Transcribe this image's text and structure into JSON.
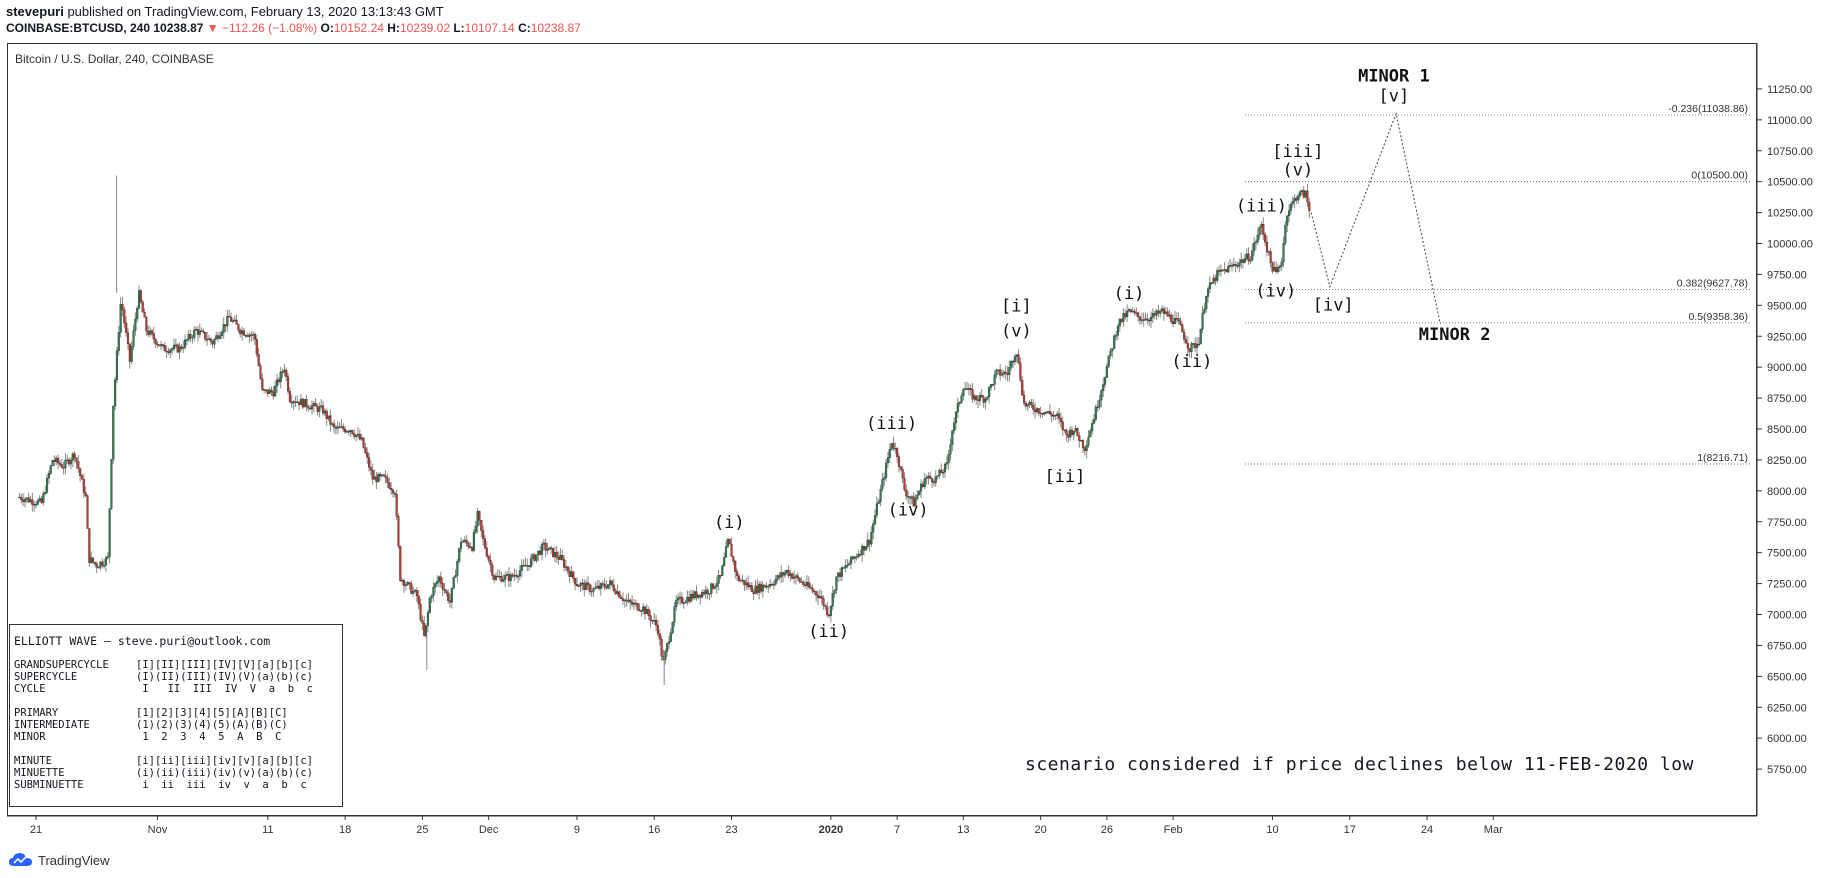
{
  "header": {
    "author": "stevepuri",
    "published": "published on TradingView.com, February 13, 2020 13:13:43 GMT",
    "symbol": "COINBASE:BTCUSD, 240",
    "last": "10238.87",
    "change": "▼ −112.26 (−1.08%)",
    "o_label": "O:",
    "o": "10152.24",
    "h_label": "H:",
    "h": "10239.02",
    "l_label": "L:",
    "l": "10107.14",
    "c_label": "C:",
    "c": "10238.87"
  },
  "instrument": "Bitcoin / U.S. Dollar, 240, COINBASE",
  "footer_brand": "TradingView",
  "note": "scenario considered if price declines below 11-FEB-2020 low",
  "legend": {
    "title": "ELLIOTT WAVE — steve.puri@outlook.com",
    "rows": [
      {
        "name": "GRANDSUPERCYCLE",
        "labels": "[I][II][III][IV][V][a][b][c]"
      },
      {
        "name": "SUPERCYCLE",
        "labels": "(I)(II)(III)(IV)(V)(a)(b)(c)"
      },
      {
        "name": "CYCLE",
        "labels": " I   II  III  IV  V  a  b  c"
      },
      {
        "name": "",
        "labels": ""
      },
      {
        "name": "PRIMARY",
        "labels": "[1][2][3][4][5][A][B][C]"
      },
      {
        "name": "INTERMEDIATE",
        "labels": "(1)(2)(3)(4)(5)(A)(B)(C)"
      },
      {
        "name": "MINOR",
        "labels": " 1  2  3  4  5  A  B  C"
      },
      {
        "name": "",
        "labels": ""
      },
      {
        "name": "MINUTE",
        "labels": "[i][ii][iii][iv][v][a][b][c]"
      },
      {
        "name": "MINUETTE",
        "labels": "(i)(ii)(iii)(iv)(v)(a)(b)(c)"
      },
      {
        "name": "SUBMINUETTE",
        "labels": " i  ii  iii  iv  v  a  b  c"
      }
    ]
  },
  "chart_data": {
    "type": "candlestick",
    "title": "Bitcoin / U.S. Dollar, 240, COINBASE",
    "ylim": [
      5500,
      11500
    ],
    "y_ticks": [
      "5750.00",
      "6000.00",
      "6250.00",
      "6500.00",
      "6750.00",
      "7000.00",
      "7250.00",
      "7500.00",
      "7750.00",
      "8000.00",
      "8250.00",
      "8500.00",
      "8750.00",
      "9000.00",
      "9250.00",
      "9500.00",
      "9750.00",
      "10000.00",
      "10250.00",
      "10500.00",
      "10750.00",
      "11000.00",
      "11250.00"
    ],
    "x_ticks": [
      {
        "label": "21",
        "day": 0
      },
      {
        "label": "Nov",
        "day": 11
      },
      {
        "label": "11",
        "day": 21
      },
      {
        "label": "18",
        "day": 28
      },
      {
        "label": "25",
        "day": 35
      },
      {
        "label": "Dec",
        "day": 41
      },
      {
        "label": "9",
        "day": 49
      },
      {
        "label": "16",
        "day": 56
      },
      {
        "label": "23",
        "day": 63
      },
      {
        "label": "2020",
        "day": 72
      },
      {
        "label": "7",
        "day": 78
      },
      {
        "label": "13",
        "day": 84
      },
      {
        "label": "20",
        "day": 91
      },
      {
        "label": "26",
        "day": 97
      },
      {
        "label": "Feb",
        "day": 103
      },
      {
        "label": "10",
        "day": 112
      },
      {
        "label": "17",
        "day": 119
      },
      {
        "label": "24",
        "day": 126
      },
      {
        "label": "Mar",
        "day": 132
      }
    ],
    "price_path": [
      [
        -1.5,
        7950
      ],
      [
        0.5,
        7900
      ],
      [
        1.5,
        8250
      ],
      [
        2.5,
        8200
      ],
      [
        3.5,
        8300
      ],
      [
        4.5,
        7950
      ],
      [
        4.8,
        7450
      ],
      [
        5.5,
        7400
      ],
      [
        6.5,
        7450
      ],
      [
        7.0,
        8700
      ],
      [
        7.7,
        9550
      ],
      [
        8.5,
        9050
      ],
      [
        9.3,
        9600
      ],
      [
        10.0,
        9300
      ],
      [
        11.5,
        9150
      ],
      [
        13.0,
        9150
      ],
      [
        14.5,
        9300
      ],
      [
        16.0,
        9200
      ],
      [
        17.5,
        9400
      ],
      [
        18.5,
        9300
      ],
      [
        19.8,
        9250
      ],
      [
        20.5,
        8800
      ],
      [
        21.5,
        8800
      ],
      [
        22.5,
        9000
      ],
      [
        23.0,
        8750
      ],
      [
        24.5,
        8700
      ],
      [
        26.0,
        8650
      ],
      [
        27.0,
        8500
      ],
      [
        28.5,
        8500
      ],
      [
        29.5,
        8400
      ],
      [
        30.5,
        8100
      ],
      [
        31.5,
        8100
      ],
      [
        32.5,
        8000
      ],
      [
        33.0,
        7300
      ],
      [
        34.0,
        7200
      ],
      [
        34.5,
        7150
      ],
      [
        35.2,
        6800
      ],
      [
        35.7,
        7150
      ],
      [
        36.5,
        7300
      ],
      [
        37.5,
        7100
      ],
      [
        38.5,
        7600
      ],
      [
        39.5,
        7550
      ],
      [
        40.0,
        7800
      ],
      [
        40.5,
        7600
      ],
      [
        41.5,
        7300
      ],
      [
        43.0,
        7300
      ],
      [
        44.5,
        7400
      ],
      [
        46.0,
        7550
      ],
      [
        47.5,
        7450
      ],
      [
        49.0,
        7250
      ],
      [
        50.5,
        7200
      ],
      [
        52.0,
        7250
      ],
      [
        53.5,
        7100
      ],
      [
        55.0,
        7050
      ],
      [
        56.3,
        6900
      ],
      [
        56.8,
        6600
      ],
      [
        57.3,
        6800
      ],
      [
        58.0,
        7100
      ],
      [
        59.5,
        7150
      ],
      [
        61.0,
        7200
      ],
      [
        62.0,
        7300
      ],
      [
        62.7,
        7600
      ],
      [
        63.5,
        7300
      ],
      [
        65.0,
        7200
      ],
      [
        66.5,
        7250
      ],
      [
        68.0,
        7350
      ],
      [
        69.5,
        7250
      ],
      [
        71.0,
        7150
      ],
      [
        71.8,
        7000
      ],
      [
        72.5,
        7300
      ],
      [
        73.5,
        7400
      ],
      [
        74.5,
        7500
      ],
      [
        75.5,
        7600
      ],
      [
        76.0,
        7800
      ],
      [
        77.5,
        8400
      ],
      [
        78.0,
        8300
      ],
      [
        78.7,
        8000
      ],
      [
        79.5,
        7900
      ],
      [
        80.5,
        8100
      ],
      [
        81.5,
        8100
      ],
      [
        82.5,
        8200
      ],
      [
        83.0,
        8500
      ],
      [
        84.0,
        8850
      ],
      [
        85.0,
        8750
      ],
      [
        86.0,
        8750
      ],
      [
        87.0,
        8950
      ],
      [
        88.0,
        8950
      ],
      [
        88.8,
        9150
      ],
      [
        89.5,
        8700
      ],
      [
        91.0,
        8650
      ],
      [
        92.5,
        8600
      ],
      [
        93.3,
        8450
      ],
      [
        94.0,
        8500
      ],
      [
        95.0,
        8350
      ],
      [
        96.0,
        8650
      ],
      [
        97.0,
        9000
      ],
      [
        98.0,
        9350
      ],
      [
        99.0,
        9450
      ],
      [
        100.0,
        9400
      ],
      [
        101.0,
        9400
      ],
      [
        102.0,
        9450
      ],
      [
        103.5,
        9350
      ],
      [
        104.5,
        9150
      ],
      [
        105.3,
        9200
      ],
      [
        106.0,
        9600
      ],
      [
        107.0,
        9750
      ],
      [
        108.0,
        9800
      ],
      [
        109.0,
        9850
      ],
      [
        110.0,
        9900
      ],
      [
        111.0,
        10150
      ],
      [
        111.8,
        9850
      ],
      [
        112.3,
        9750
      ],
      [
        112.8,
        9850
      ],
      [
        113.3,
        10250
      ],
      [
        114.3,
        10400
      ],
      [
        115.0,
        10400
      ],
      [
        115.5,
        10200
      ]
    ],
    "fib_levels": [
      {
        "label": "-0.236(11038.86)",
        "value": 11038.86
      },
      {
        "label": "0(10500.00)",
        "value": 10500.0
      },
      {
        "label": "0.382(9627.78)",
        "value": 9627.78
      },
      {
        "label": "0.5(9358.36)",
        "value": 9358.36
      },
      {
        "label": "1(8216.71)",
        "value": 8216.71
      }
    ],
    "projection": [
      [
        115.5,
        10250
      ],
      [
        117.2,
        9650
      ],
      [
        123.2,
        11050
      ],
      [
        127.2,
        9350
      ]
    ],
    "wave_labels": [
      {
        "text": "(i)",
        "day": 62.8,
        "price": 7700
      },
      {
        "text": "(ii)",
        "day": 71.8,
        "price": 6820
      },
      {
        "text": "(iii)",
        "day": 77.5,
        "price": 8500
      },
      {
        "text": "(iv)",
        "day": 79.0,
        "price": 7800
      },
      {
        "text": "[i]",
        "day": 88.8,
        "price": 9450
      },
      {
        "text": "(v)",
        "day": 88.8,
        "price": 9250
      },
      {
        "text": "[ii]",
        "day": 93.2,
        "price": 8070
      },
      {
        "text": "(i)",
        "day": 99.0,
        "price": 9550
      },
      {
        "text": "(ii)",
        "day": 104.7,
        "price": 9000
      },
      {
        "text": "(iii)",
        "day": 111.0,
        "price": 10260
      },
      {
        "text": "(iv)",
        "day": 112.3,
        "price": 9570
      },
      {
        "text": "[iii]",
        "day": 114.3,
        "price": 10700
      },
      {
        "text": "(v)",
        "day": 114.3,
        "price": 10550
      },
      {
        "text": "[iv]",
        "day": 117.5,
        "price": 9460
      },
      {
        "text": "MINOR 1",
        "day": 123.0,
        "price": 11310
      },
      {
        "text": "[v]",
        "day": 123.0,
        "price": 11150
      },
      {
        "text": "MINOR 2",
        "day": 128.5,
        "price": 9220
      }
    ]
  }
}
